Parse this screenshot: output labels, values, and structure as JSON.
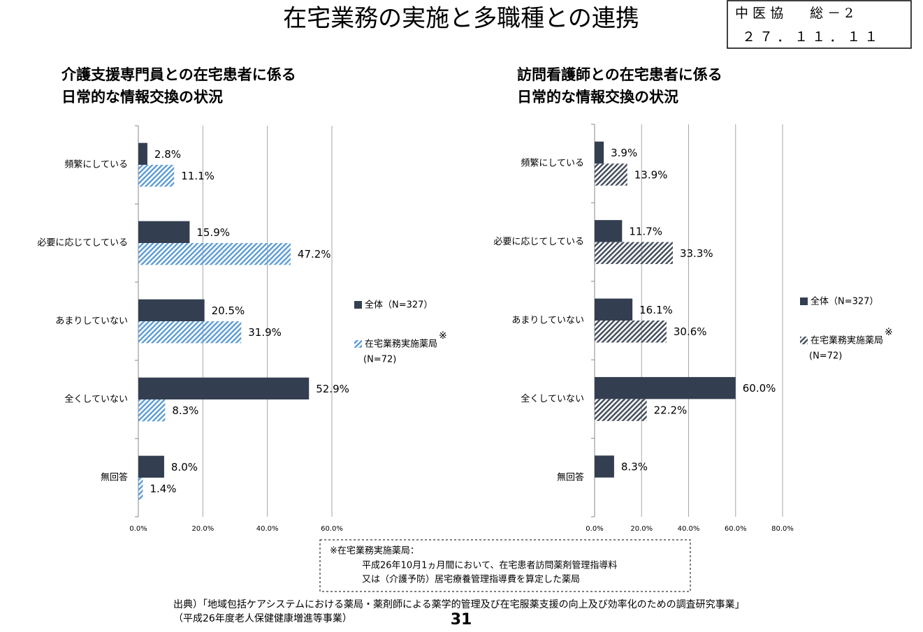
{
  "slide": {
    "title": "在宅業務の実施と多職種との連携",
    "doc_id": [
      "中 医 協　　総 － 2",
      "２ ７ ． １ １ ． １ １"
    ],
    "note": [
      "※在宅業務実施薬局：",
      "平成26年10月1ヵ月間において、在宅患者訪問薬剤管理指導料",
      "又は（介護予防）居宅療養管理指導費を算定した薬局"
    ],
    "source": [
      "出典）「地域包括ケアシステムにおける薬局・薬剤師による薬学的管理及び在宅服薬支援の向上及び効率化のための調査研究事業」",
      "（平成26年度老人保健健康増進等事業）"
    ],
    "page_number": "31"
  },
  "chart_data": [
    {
      "type": "bar",
      "orientation": "horizontal",
      "title": [
        "介護支援専門員との在宅患者に係る",
        "日常的な情報交換の状況"
      ],
      "categories": [
        "頻繁にしている",
        "必要に応じてしている",
        "あまりしていない",
        "全くしていない",
        "無回答"
      ],
      "series": [
        {
          "name": "全体（N=327）",
          "color": "#333f50",
          "pattern": "solid",
          "values": [
            2.8,
            15.9,
            20.5,
            52.9,
            8.0
          ],
          "value_labels": [
            "2.8%",
            "15.9%",
            "20.5%",
            "52.9%",
            "8.0%"
          ]
        },
        {
          "name": "在宅業務実施薬局",
          "name_mark": "※",
          "sample": "(N=72)",
          "color": "#5b9bd5",
          "pattern": "hatch",
          "values": [
            11.1,
            47.2,
            31.9,
            8.3,
            1.4
          ],
          "value_labels": [
            "11.1%",
            "47.2%",
            "31.9%",
            "8.3%",
            "1.4%"
          ]
        }
      ],
      "xlim": [
        0,
        60
      ],
      "xticks": [
        {
          "value": 0,
          "label": "0.0%"
        },
        {
          "value": 20,
          "label": "20.0%"
        },
        {
          "value": 40,
          "label": "40.0%"
        },
        {
          "value": 60,
          "label": "60.0%"
        }
      ],
      "grid": true
    },
    {
      "type": "bar",
      "orientation": "horizontal",
      "title": [
        "訪問看護師との在宅患者に係る",
        "日常的な情報交換の状況"
      ],
      "categories": [
        "頻繁にしている",
        "必要に応じてしている",
        "あまりしていない",
        "全くしていない",
        "無回答"
      ],
      "series": [
        {
          "name": "全体（N=327）",
          "color": "#333f50",
          "pattern": "solid",
          "values": [
            3.9,
            11.7,
            16.1,
            60.0,
            8.3
          ],
          "value_labels": [
            "3.9%",
            "11.7%",
            "16.1%",
            "60.0%",
            "8.3%"
          ]
        },
        {
          "name": "在宅業務実施薬局",
          "name_mark": "※",
          "sample": "(N=72)",
          "color": "#404a5a",
          "pattern": "hatch",
          "values": [
            13.9,
            33.3,
            30.6,
            22.2,
            null
          ],
          "value_labels": [
            "13.9%",
            "33.3%",
            "30.6%",
            "22.2%",
            null
          ]
        }
      ],
      "xlim": [
        0,
        80
      ],
      "xticks": [
        {
          "value": 0,
          "label": "0.0%"
        },
        {
          "value": 20,
          "label": "20.0%"
        },
        {
          "value": 40,
          "label": "40.0%"
        },
        {
          "value": 60,
          "label": "60.0%"
        },
        {
          "value": 80,
          "label": "80.0%"
        }
      ],
      "grid": true
    }
  ]
}
